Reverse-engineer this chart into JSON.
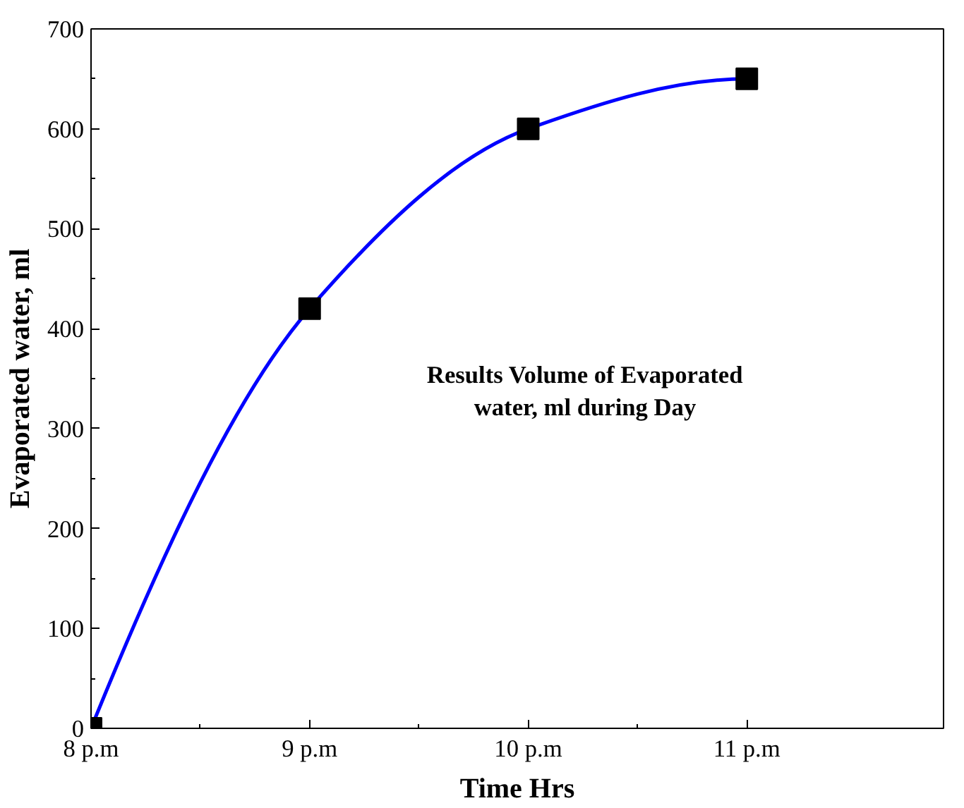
{
  "chart_data": {
    "type": "line",
    "xlabel": "Time Hrs",
    "ylabel": "Evaporated water, ml",
    "x": [
      8,
      9,
      10,
      11
    ],
    "series": [
      {
        "color": "#0000ff",
        "values": [
          0,
          420,
          600,
          650
        ]
      }
    ],
    "marker": "square",
    "line_style": "solid",
    "grid": false,
    "xlim": [
      8,
      11.9
    ],
    "ylim": [
      0,
      700
    ],
    "xticks": [
      {
        "value": 8,
        "label": "8 p.m"
      },
      {
        "value": 9,
        "label": "9 p.m"
      },
      {
        "value": 10,
        "label": "10 p.m"
      },
      {
        "value": 11,
        "label": "11 p.m"
      }
    ],
    "yticks": [
      0,
      100,
      200,
      300,
      400,
      500,
      600,
      700
    ],
    "annotations": [
      "Results Volume of Evaporated water, ml during Day"
    ]
  }
}
